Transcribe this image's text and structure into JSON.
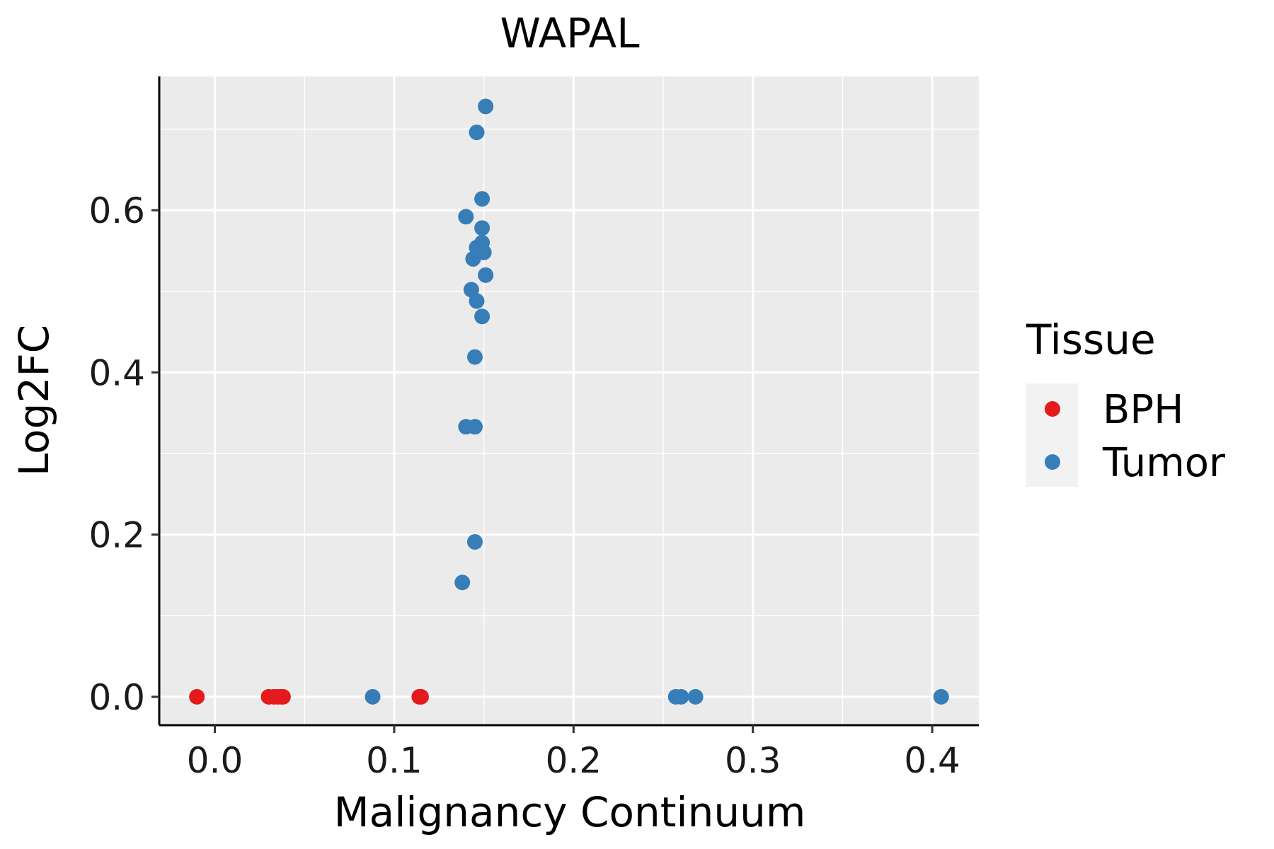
{
  "chart_data": {
    "type": "scatter",
    "title": "WAPAL",
    "xlabel": "Malignancy Continuum",
    "ylabel": "Log2FC",
    "xlim": [
      -0.031,
      0.426
    ],
    "ylim": [
      -0.035,
      0.765
    ],
    "x_ticks": [
      0.0,
      0.1,
      0.2,
      0.3,
      0.4
    ],
    "x_tick_labels": [
      "0.0",
      "0.1",
      "0.2",
      "0.3",
      "0.4"
    ],
    "x_minor_ticks": [
      0.05,
      0.15,
      0.25,
      0.35
    ],
    "y_ticks": [
      0.0,
      0.2,
      0.4,
      0.6
    ],
    "y_tick_labels": [
      "0.0",
      "0.2",
      "0.4",
      "0.6"
    ],
    "y_minor_ticks": [
      0.1,
      0.3,
      0.5,
      0.7
    ],
    "grid": true,
    "legend": {
      "title": "Tissue",
      "position": "right",
      "entries": [
        "BPH",
        "Tumor"
      ]
    },
    "series": [
      {
        "name": "BPH",
        "color": "#E41A1C",
        "points": [
          [
            -0.01,
            0.0
          ],
          [
            0.03,
            0.0
          ],
          [
            0.033,
            0.0
          ],
          [
            0.035,
            0.0
          ],
          [
            0.037,
            0.0
          ],
          [
            0.038,
            0.0
          ],
          [
            0.114,
            0.0
          ],
          [
            0.115,
            0.0
          ]
        ]
      },
      {
        "name": "Tumor",
        "color": "#377EB8",
        "points": [
          [
            0.151,
            0.728
          ],
          [
            0.146,
            0.696
          ],
          [
            0.149,
            0.614
          ],
          [
            0.14,
            0.592
          ],
          [
            0.149,
            0.578
          ],
          [
            0.149,
            0.56
          ],
          [
            0.146,
            0.554
          ],
          [
            0.15,
            0.548
          ],
          [
            0.144,
            0.54
          ],
          [
            0.151,
            0.52
          ],
          [
            0.143,
            0.502
          ],
          [
            0.146,
            0.488
          ],
          [
            0.149,
            0.469
          ],
          [
            0.145,
            0.419
          ],
          [
            0.14,
            0.333
          ],
          [
            0.145,
            0.333
          ],
          [
            0.145,
            0.191
          ],
          [
            0.138,
            0.141
          ],
          [
            0.088,
            0.0
          ],
          [
            0.257,
            0.0
          ],
          [
            0.26,
            0.0
          ],
          [
            0.268,
            0.0
          ],
          [
            0.405,
            0.0
          ]
        ]
      }
    ]
  }
}
